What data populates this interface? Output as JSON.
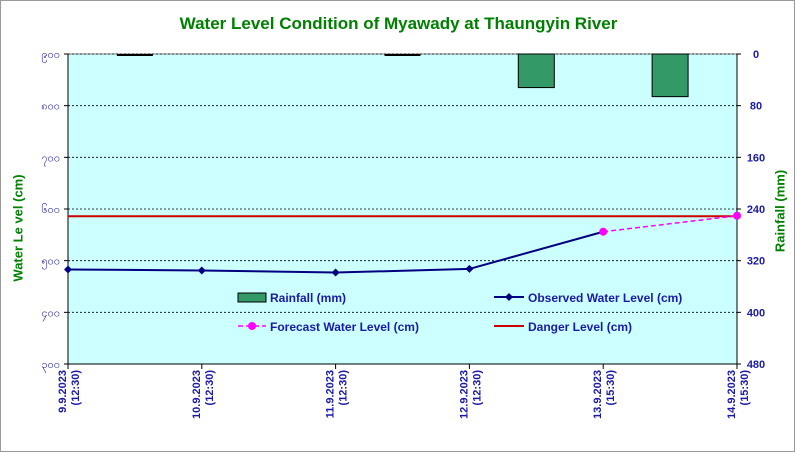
{
  "chart_data": {
    "type": "line",
    "title": "Water Level Condition of  Myawady at Thaungyin River",
    "ylabel": "Water Le vel (cm)",
    "y2label": "Rainfall (mm)",
    "ylim": [
      300,
      900
    ],
    "y2lim": [
      0,
      480
    ],
    "y_ticks": [
      "၃၀၀",
      "၄၀၀",
      "၅၀၀",
      "၆၀၀",
      "၇၀၀",
      "၈၀၀",
      "၉၀၀"
    ],
    "y2_ticks": [
      0,
      80,
      160,
      240,
      320,
      400,
      480
    ],
    "categories": [
      "9.9.2023",
      "10.9.2023",
      "11.9.2023",
      "12.9.2023",
      "13.9.2023",
      "14.9.2023"
    ],
    "category_times": [
      "(12:30)",
      "(12:30)",
      "(12:30)",
      "(12:30)",
      "(15:30)",
      "(15:30)"
    ],
    "series": [
      {
        "name": "Rainfall (mm)",
        "kind": "bar",
        "axis": "right",
        "color": "#339966",
        "values": [
          2,
          0,
          2,
          52,
          66,
          0
        ]
      },
      {
        "name": "Observed Water Level (cm)",
        "kind": "line",
        "axis": "left",
        "color": "#000080",
        "values": [
          483,
          481,
          477,
          484,
          556,
          null
        ]
      },
      {
        "name": "Forecast Water Level (cm)",
        "kind": "dashed-line",
        "axis": "left",
        "color": "#ff00ff",
        "values": [
          null,
          null,
          null,
          null,
          556,
          587
        ]
      },
      {
        "name": "Danger Level (cm)",
        "kind": "reference",
        "axis": "left",
        "color": "#cc0000",
        "value": 586
      }
    ],
    "grid": true,
    "legend": "inside-bottom"
  },
  "colors": {
    "plot_bg": "#ccffff",
    "title": "#008000",
    "axis_text": "#1a1aa6"
  }
}
